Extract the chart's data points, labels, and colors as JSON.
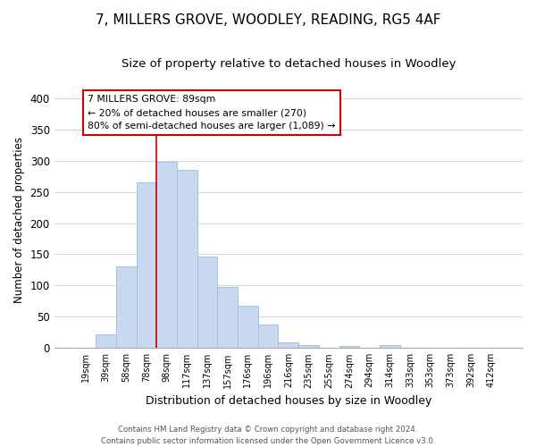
{
  "title": "7, MILLERS GROVE, WOODLEY, READING, RG5 4AF",
  "subtitle": "Size of property relative to detached houses in Woodley",
  "xlabel": "Distribution of detached houses by size in Woodley",
  "ylabel": "Number of detached properties",
  "bar_labels": [
    "19sqm",
    "39sqm",
    "58sqm",
    "78sqm",
    "98sqm",
    "117sqm",
    "137sqm",
    "157sqm",
    "176sqm",
    "196sqm",
    "216sqm",
    "235sqm",
    "255sqm",
    "274sqm",
    "294sqm",
    "314sqm",
    "333sqm",
    "353sqm",
    "373sqm",
    "392sqm",
    "412sqm"
  ],
  "bar_values": [
    0,
    22,
    130,
    265,
    298,
    285,
    147,
    98,
    68,
    37,
    9,
    5,
    0,
    3,
    0,
    5,
    0,
    0,
    0,
    0,
    0
  ],
  "bar_color": "#c8d8f0",
  "bar_edgecolor": "#a8c0e0",
  "ylim": [
    0,
    410
  ],
  "yticks": [
    0,
    50,
    100,
    150,
    200,
    250,
    300,
    350,
    400
  ],
  "annotation_line1": "7 MILLERS GROVE: 89sqm",
  "annotation_line2": "← 20% of detached houses are smaller (270)",
  "annotation_line3": "80% of semi-detached houses are larger (1,089) →",
  "annotation_box_facecolor": "#ffffff",
  "annotation_box_edgecolor": "#cc0000",
  "footer1": "Contains HM Land Registry data © Crown copyright and database right 2024.",
  "footer2": "Contains public sector information licensed under the Open Government Licence v3.0.",
  "bg_color": "#ffffff",
  "grid_color": "#d0d8ec",
  "title_fontsize": 11,
  "subtitle_fontsize": 9.5,
  "property_line_x": 3.5
}
